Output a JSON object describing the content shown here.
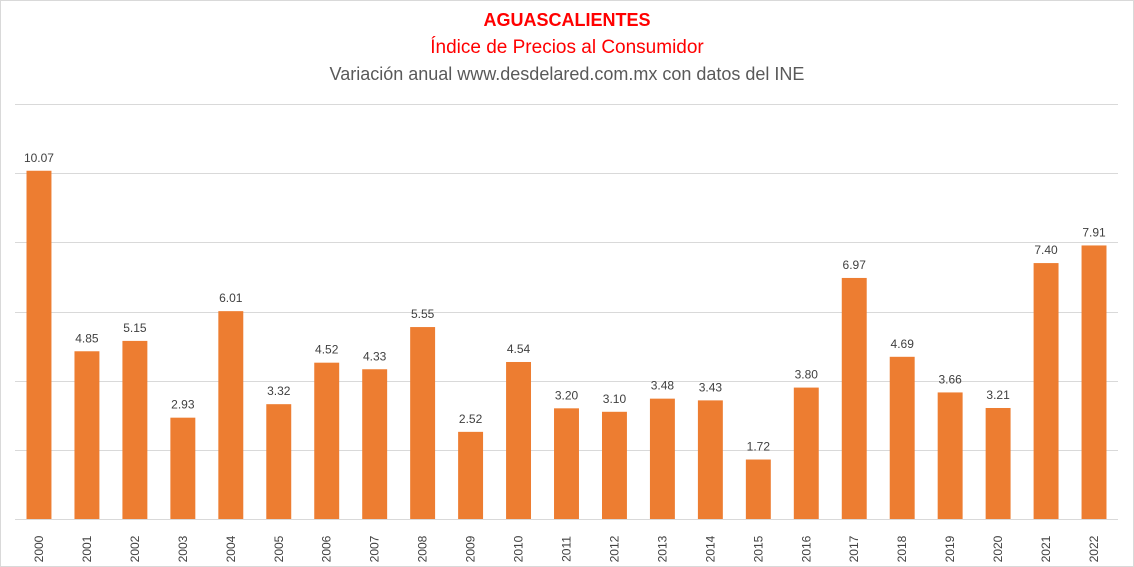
{
  "chart_data": {
    "type": "bar",
    "title": "AGUASCALIENTES",
    "subtitle": "Índice de Precios al Consumidor",
    "subtitle2": "Variación anual www.desdelared.com.mx  con datos del INE",
    "categories": [
      "2000",
      "2001",
      "2002",
      "2003",
      "2004",
      "2005",
      "2006",
      "2007",
      "2008",
      "2009",
      "2010",
      "2011",
      "2012",
      "2013",
      "2014",
      "2015",
      "2016",
      "2017",
      "2018",
      "2019",
      "2020",
      "2021",
      "2022"
    ],
    "values": [
      10.07,
      4.85,
      5.15,
      2.93,
      6.01,
      3.32,
      4.52,
      4.33,
      5.55,
      2.52,
      4.54,
      3.2,
      3.1,
      3.48,
      3.43,
      1.72,
      3.8,
      6.97,
      4.69,
      3.66,
      3.21,
      7.4,
      7.91
    ],
    "labels": [
      "10.07",
      "4.85",
      "5.15",
      "2.93",
      "6.01",
      "3.32",
      "4.52",
      "4.33",
      "5.55",
      "2.52",
      "4.54",
      "3.20",
      "3.10",
      "3.48",
      "3.43",
      "1.72",
      "3.80",
      "6.97",
      "4.69",
      "3.66",
      "3.21",
      "7.40",
      "7.91"
    ],
    "ylim": [
      0,
      12
    ],
    "grid": true,
    "colors": {
      "bar": "#ed7d31",
      "grid": "#d9d9d9"
    }
  }
}
